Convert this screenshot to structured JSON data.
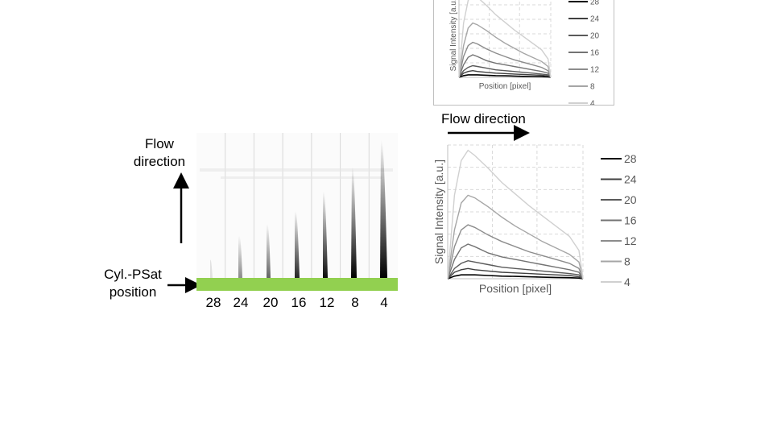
{
  "left_panel": {
    "flow_direction_label_line1": "Flow",
    "flow_direction_label_line2": "direction",
    "cyl_label_line1": "Cyl.-PSat",
    "cyl_label_line2": "position",
    "strip_labels": [
      "28",
      "24",
      "20",
      "16",
      "12",
      "8",
      "4"
    ],
    "strip_colors": {
      "bar": "#92d050"
    }
  },
  "main_plot": {
    "flow_direction_label": "Flow direction",
    "xlabel": "Position [pixel]",
    "ylabel": "Signal Intensity  [a.u.]"
  },
  "inset_plot": {
    "xlabel": "Position [pixel]",
    "ylabel": "Signal Intensity [a.u.]"
  },
  "chart_data": {
    "type": "line",
    "xlabel": "Position [pixel]",
    "ylabel": "Signal Intensity  [a.u.]",
    "legend_position": "right",
    "grid": true,
    "x": [
      0,
      0.05,
      0.1,
      0.15,
      0.2,
      0.3,
      0.4,
      0.5,
      0.6,
      0.7,
      0.8,
      0.9,
      0.97,
      1.0
    ],
    "series": [
      {
        "name": "28",
        "color": "#000000",
        "values": [
          0.0,
          0.02,
          0.03,
          0.03,
          0.03,
          0.025,
          0.02,
          0.018,
          0.015,
          0.012,
          0.01,
          0.008,
          0.005,
          0.0
        ]
      },
      {
        "name": "24",
        "color": "#404040",
        "values": [
          0.0,
          0.05,
          0.07,
          0.08,
          0.07,
          0.06,
          0.05,
          0.045,
          0.04,
          0.035,
          0.03,
          0.025,
          0.015,
          0.0
        ]
      },
      {
        "name": "20",
        "color": "#5a5a5a",
        "values": [
          0.0,
          0.08,
          0.12,
          0.14,
          0.13,
          0.11,
          0.09,
          0.08,
          0.07,
          0.06,
          0.05,
          0.04,
          0.03,
          0.0
        ]
      },
      {
        "name": "16",
        "color": "#737373",
        "values": [
          0.0,
          0.15,
          0.24,
          0.27,
          0.25,
          0.2,
          0.17,
          0.15,
          0.13,
          0.11,
          0.09,
          0.07,
          0.05,
          0.0
        ]
      },
      {
        "name": "12",
        "color": "#8c8c8c",
        "values": [
          0.0,
          0.25,
          0.38,
          0.42,
          0.4,
          0.34,
          0.29,
          0.25,
          0.21,
          0.18,
          0.15,
          0.12,
          0.08,
          0.0
        ]
      },
      {
        "name": "8",
        "color": "#a6a6a6",
        "values": [
          0.0,
          0.38,
          0.59,
          0.65,
          0.63,
          0.56,
          0.48,
          0.41,
          0.35,
          0.29,
          0.24,
          0.19,
          0.13,
          0.0
        ]
      },
      {
        "name": "4",
        "color": "#d0d0d0",
        "values": [
          0.0,
          0.65,
          0.92,
          1.0,
          0.96,
          0.86,
          0.75,
          0.66,
          0.57,
          0.49,
          0.41,
          0.33,
          0.22,
          0.0
        ]
      }
    ]
  }
}
